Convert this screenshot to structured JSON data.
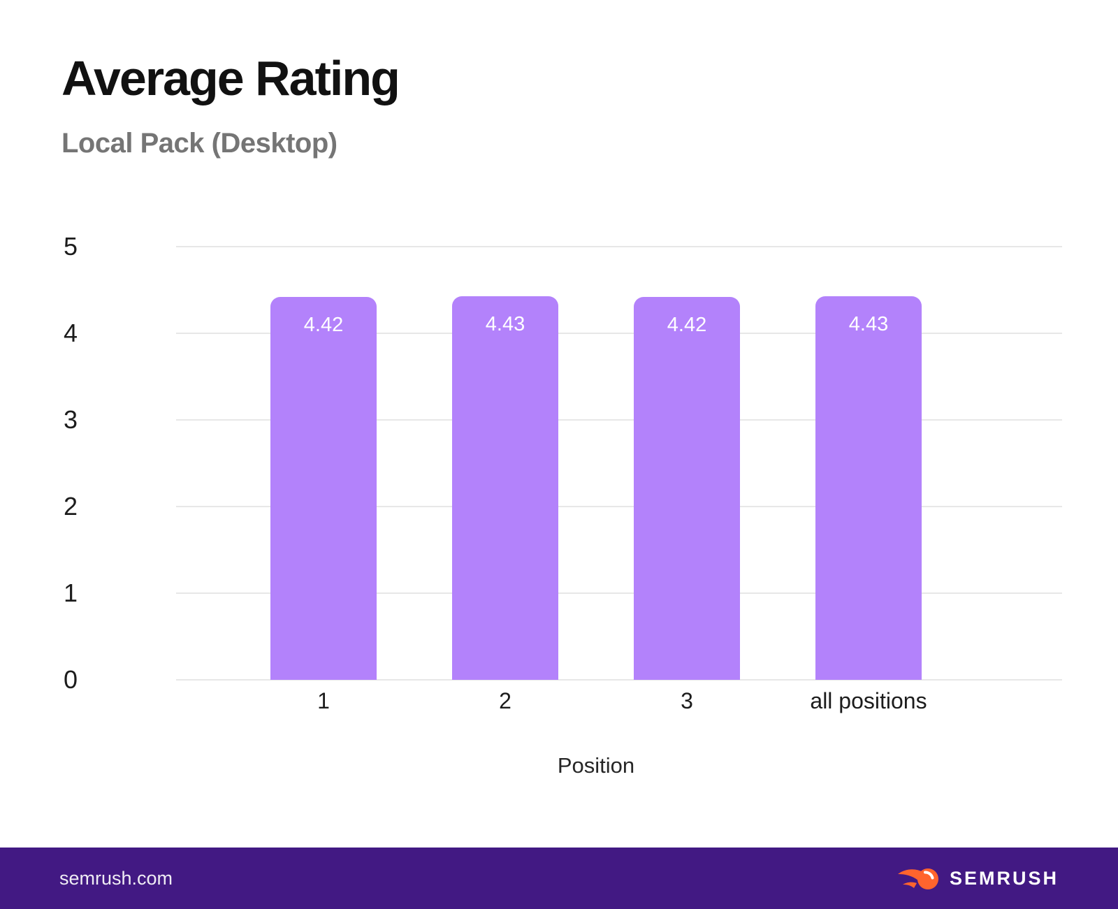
{
  "header": {
    "title": "Average Rating",
    "subtitle": "Local Pack (Desktop)"
  },
  "chart_data": {
    "type": "bar",
    "title": "Average Rating",
    "subtitle": "Local Pack (Desktop)",
    "categories": [
      "1",
      "2",
      "3",
      "all positions"
    ],
    "values": [
      4.42,
      4.43,
      4.42,
      4.43
    ],
    "bar_labels": [
      "4.42",
      "4.43",
      "4.42",
      "4.43"
    ],
    "xlabel": "Position",
    "ylabel": "",
    "ylim": [
      0,
      5
    ],
    "yticks": [
      5,
      4,
      3,
      2,
      1,
      0
    ],
    "grid": true,
    "legend_position": "none",
    "bar_color": "#B382FB",
    "bar_label_color": "#FFFFFF",
    "gridline_color": "#e7e7e7"
  },
  "footer": {
    "site": "semrush.com",
    "brand": "SEMRUSH",
    "background_color": "#421983",
    "flame_color": "#FF642D"
  }
}
